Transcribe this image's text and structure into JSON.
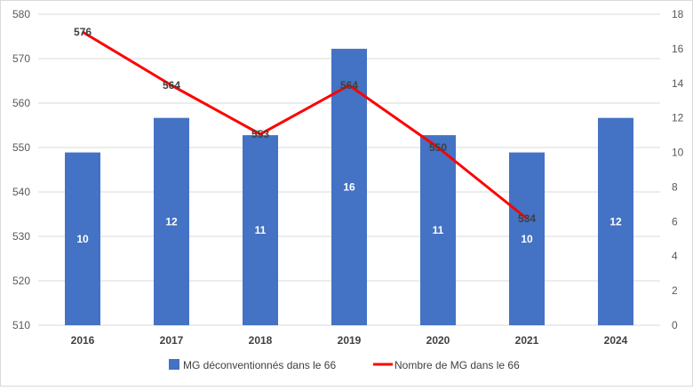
{
  "chart_data": {
    "type": "bar",
    "categories": [
      "2016",
      "2017",
      "2018",
      "2019",
      "2020",
      "2021",
      "2024"
    ],
    "series": [
      {
        "name": "MG déconventionnés dans le 66",
        "type": "bar",
        "axis": "right",
        "values": [
          10,
          12,
          11,
          16,
          11,
          10,
          12
        ],
        "labels": [
          "10",
          "12",
          "11",
          "16",
          "11",
          "10",
          "12"
        ],
        "color": "#4472C4"
      },
      {
        "name": "Nombre de MG dans le 66",
        "type": "line",
        "axis": "left",
        "values": [
          576,
          564,
          553,
          564,
          550,
          534,
          null
        ],
        "labels": [
          "576",
          "564",
          "553",
          "564",
          "550",
          "534",
          ""
        ],
        "color": "#FF0000"
      }
    ],
    "left_axis": {
      "min": 510,
      "max": 580,
      "step": 10,
      "ticks": [
        "510",
        "520",
        "530",
        "540",
        "550",
        "560",
        "570",
        "580"
      ]
    },
    "right_axis": {
      "min": 0,
      "max": 18,
      "step": 2,
      "ticks": [
        "0",
        "2",
        "4",
        "6",
        "8",
        "10",
        "12",
        "14",
        "16",
        "18"
      ]
    },
    "grid": true,
    "legend_position": "bottom",
    "title": "",
    "xlabel": "",
    "ylabel": ""
  }
}
